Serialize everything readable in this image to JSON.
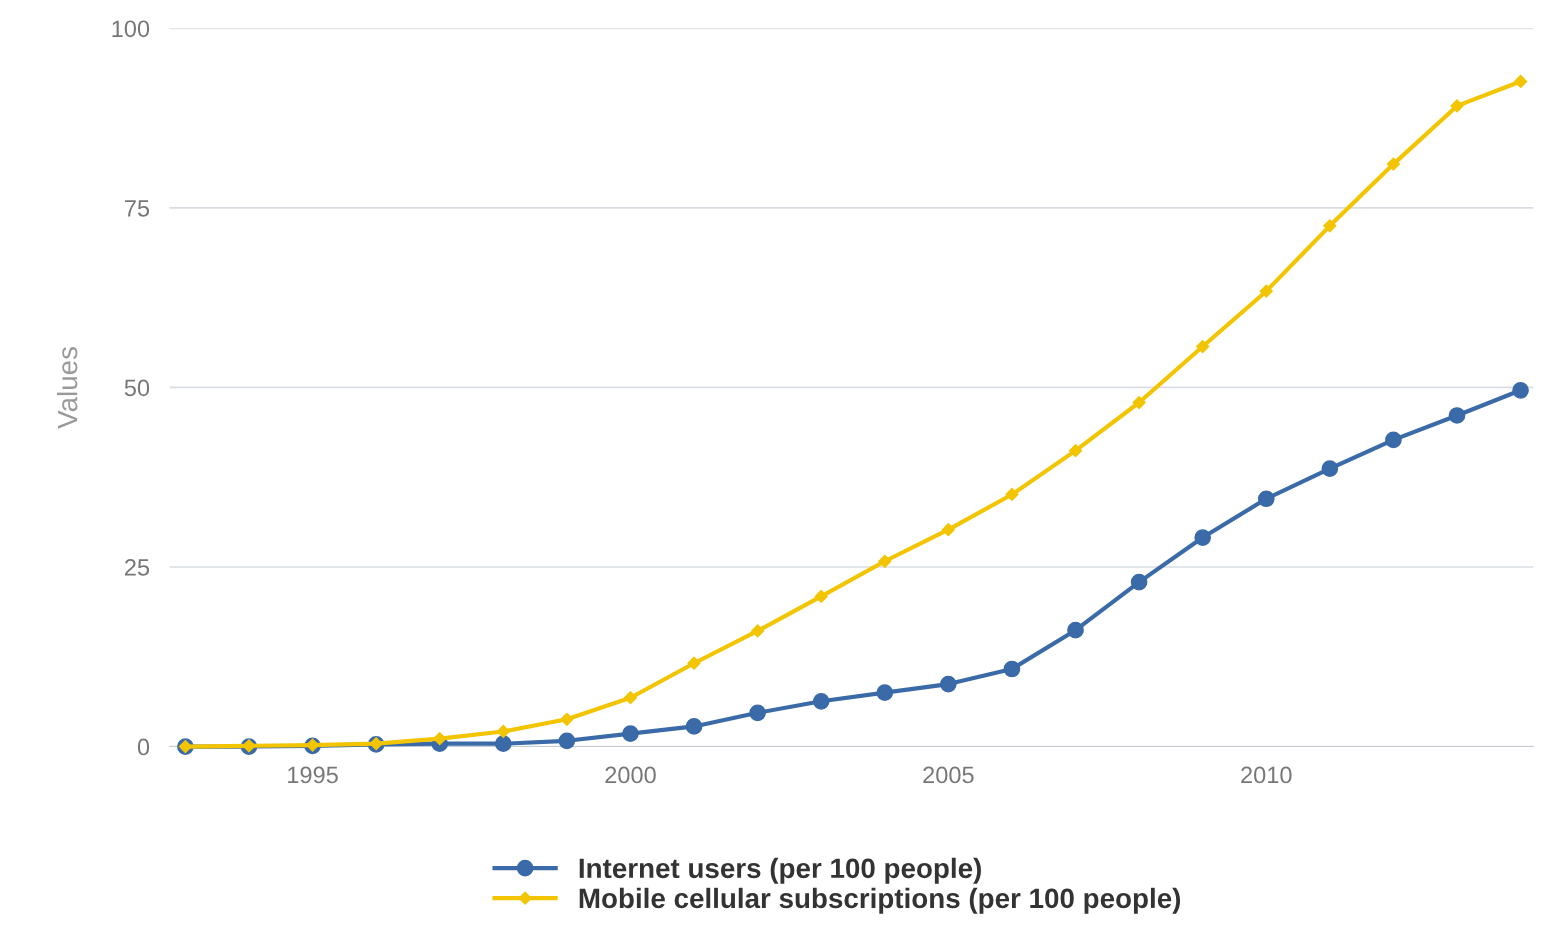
{
  "chart_data": {
    "type": "line",
    "ylabel": "Values",
    "x": [
      1993,
      1994,
      1995,
      1996,
      1997,
      1998,
      1999,
      2000,
      2001,
      2002,
      2003,
      2004,
      2005,
      2006,
      2007,
      2008,
      2009,
      2010,
      2011,
      2012,
      2013,
      2014
    ],
    "series": [
      {
        "name": "Internet users (per 100 people)",
        "color": "#3a6aa8",
        "marker": "circle",
        "values": [
          0,
          0,
          0.1,
          0.3,
          0.4,
          0.4,
          0.8,
          1.8,
          2.8,
          4.7,
          6.3,
          7.5,
          8.7,
          10.8,
          16.2,
          22.9,
          29.1,
          34.5,
          38.7,
          42.7,
          46.1,
          49.6
        ]
      },
      {
        "name": "Mobile cellular subscriptions (per 100 people)",
        "color": "#f2c500",
        "marker": "diamond",
        "values": [
          0,
          0.1,
          0.2,
          0.4,
          1.1,
          2.1,
          3.8,
          6.8,
          11.6,
          16.1,
          20.9,
          25.8,
          30.2,
          35.1,
          41.2,
          47.9,
          55.7,
          63.4,
          72.5,
          81.1,
          89.2,
          92.6
        ]
      }
    ],
    "xlim": [
      1992.75,
      2014.2
    ],
    "ylim": [
      0,
      100
    ],
    "xticks": [
      1995,
      2000,
      2005,
      2010
    ],
    "yticks": [
      0,
      25,
      50,
      75,
      100
    ],
    "grid": "y",
    "legend": "bottom",
    "line_style": "solid"
  }
}
